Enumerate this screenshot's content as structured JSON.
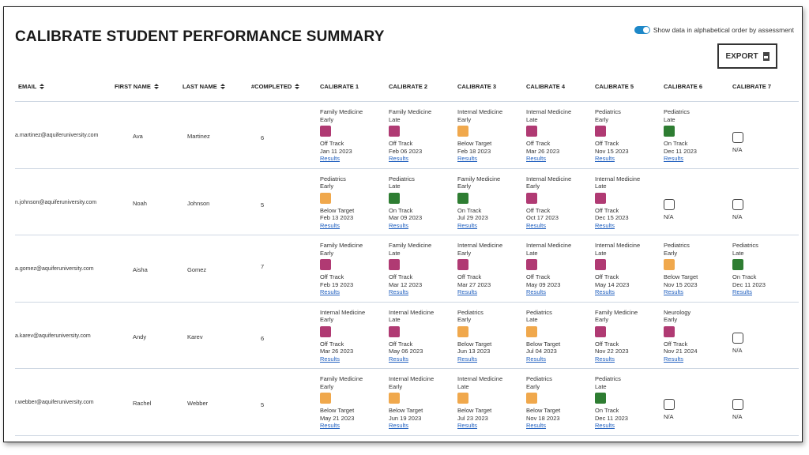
{
  "page": {
    "title": "CALIBRATE STUDENT PERFORMANCE SUMMARY",
    "toggle_label": "Show data in alphabetical order by assessment",
    "export_label": "EXPORT"
  },
  "colors": {
    "off_track": "#b03a73",
    "below_target": "#f0a84c",
    "on_track": "#2e7d32",
    "toggle_on": "#1e88c8",
    "link": "#1f5fbf"
  },
  "headers": {
    "email": "EMAIL",
    "first_name": "FIRST NAME",
    "last_name": "LAST NAME",
    "completed": "#COMPLETED",
    "calibrates": [
      "CALIBRATE 1",
      "CALIBRATE 2",
      "CALIBRATE 3",
      "CALIBRATE 4",
      "CALIBRATE 5",
      "CALIBRATE 6",
      "CALIBRATE 7"
    ]
  },
  "rows": [
    {
      "email": "a.martinez@aquiferuniversity.com",
      "first": "Ava",
      "last": "Martinez",
      "completed": "6",
      "cells": [
        {
          "l1": "Family Medicine",
          "l2": "Early",
          "state": "off",
          "status": "Off Track",
          "date": "Jan 11 2023",
          "link": "Results"
        },
        {
          "l1": "Family Medicine",
          "l2": "Late",
          "state": "off",
          "status": "Off Track",
          "date": "Feb 06 2023",
          "link": "Results"
        },
        {
          "l1": "Internal Medicine",
          "l2": "Early",
          "state": "below",
          "status": "Below Target",
          "date": "Feb 18 2023",
          "link": "Results"
        },
        {
          "l1": "Internal Medicine",
          "l2": "Late",
          "state": "off",
          "status": "Off Track",
          "date": "Mar 26 2023",
          "link": "Results"
        },
        {
          "l1": "Pediatrics",
          "l2": "Early",
          "state": "off",
          "status": "Off Track",
          "date": "Nov 15 2023",
          "link": "Results"
        },
        {
          "l1": "Pediatrics",
          "l2": "Late",
          "state": "on",
          "status": "On Track",
          "date": "Dec 11 2023",
          "link": "Results"
        },
        {
          "state": "na",
          "status": "N/A"
        }
      ]
    },
    {
      "email": "n.johnson@aquiferuniversity.com",
      "first": "Noah",
      "last": "Johnson",
      "completed": "5",
      "cells": [
        {
          "l1": "Pediatrics",
          "l2": "Early",
          "state": "below",
          "status": "Below Target",
          "date": "Feb 13 2023",
          "link": "Results"
        },
        {
          "l1": "Pediatrics",
          "l2": "Late",
          "state": "on",
          "status": "On Track",
          "date": "Mar 09 2023",
          "link": "Results"
        },
        {
          "l1": "Family Medicine",
          "l2": "Early",
          "state": "on",
          "status": "On Track",
          "date": "Jul 29 2023",
          "link": "Results"
        },
        {
          "l1": "Internal Medicine",
          "l2": "Early",
          "state": "off",
          "status": "Off Track",
          "date": "Oct 17 2023",
          "link": "Results"
        },
        {
          "l1": "Internal Medicine",
          "l2": "Late",
          "state": "off",
          "status": "Off Track",
          "date": "Dec 15 2023",
          "link": "Results"
        },
        {
          "state": "na",
          "status": "N/A"
        },
        {
          "state": "na",
          "status": "N/A"
        }
      ]
    },
    {
      "email": "a.gomez@aquiferuniversity.com",
      "first": "Aisha",
      "last": "Gomez",
      "completed": "7",
      "cells": [
        {
          "l1": "Family Medicine",
          "l2": "Early",
          "state": "off",
          "status": "Off Track",
          "date": "Feb 19 2023",
          "link": "Results"
        },
        {
          "l1": "Family Medicine",
          "l2": "Late",
          "state": "off",
          "status": "Off Track",
          "date": "Mar 12 2023",
          "link": "Results"
        },
        {
          "l1": "Internal Medicine",
          "l2": "Early",
          "state": "off",
          "status": "Off Track",
          "date": "Mar 27 2023",
          "link": "Results"
        },
        {
          "l1": "Internal Medicine",
          "l2": "Late",
          "state": "off",
          "status": "Off Track",
          "date": "May 09 2023",
          "link": "Results"
        },
        {
          "l1": "Internal Medicine",
          "l2": "Late",
          "state": "off",
          "status": "Off Track",
          "date": "May 14 2023",
          "link": "Results"
        },
        {
          "l1": "Pediatrics",
          "l2": "Early",
          "state": "below",
          "status": "Below Target",
          "date": "Nov 15 2023",
          "link": "Results"
        },
        {
          "l1": "Pediatrics",
          "l2": "Late",
          "state": "on",
          "status": "On Track",
          "date": "Dec 11 2023",
          "link": "Results"
        }
      ]
    },
    {
      "email": "a.karev@aquiferuniversity.com",
      "first": "Andy",
      "last": "Karev",
      "completed": "6",
      "cells": [
        {
          "l1": "Internal Medicine",
          "l2": "Early",
          "state": "off",
          "status": "Off Track",
          "date": "Mar 26 2023",
          "link": "Results"
        },
        {
          "l1": "Internal Medicine",
          "l2": "Late",
          "state": "off",
          "status": "Off Track",
          "date": "May 06 2023",
          "link": "Results"
        },
        {
          "l1": "Pediatrics",
          "l2": "Early",
          "state": "below",
          "status": "Below Target",
          "date": "Jun 13 2023",
          "link": "Results"
        },
        {
          "l1": "Pediatrics",
          "l2": "Late",
          "state": "below",
          "status": "Below Target",
          "date": "Jul 04 2023",
          "link": "Results"
        },
        {
          "l1": "Family Medicine",
          "l2": "Early",
          "state": "off",
          "status": "Off Track",
          "date": "Nov 22 2023",
          "link": "Results"
        },
        {
          "l1": "Neurology",
          "l2": "Early",
          "state": "off",
          "status": "Off Track",
          "date": "Nov 21 2024",
          "link": "Results"
        },
        {
          "state": "na",
          "status": "N/A"
        }
      ]
    },
    {
      "email": "r.webber@aquiferuniversity.com",
      "first": "Rachel",
      "last": "Webber",
      "completed": "5",
      "cells": [
        {
          "l1": "Family Medicine",
          "l2": "Early",
          "state": "below",
          "status": "Below Target",
          "date": "May 21 2023",
          "link": "Results"
        },
        {
          "l1": "Internal Medicine",
          "l2": "Early",
          "state": "below",
          "status": "Below Target",
          "date": "Jun 19 2023",
          "link": "Results"
        },
        {
          "l1": "Internal Medicine",
          "l2": "Late",
          "state": "below",
          "status": "Below Target",
          "date": "Jul 23 2023",
          "link": "Results"
        },
        {
          "l1": "Pediatrics",
          "l2": "Early",
          "state": "below",
          "status": "Below Target",
          "date": "Nov 18 2023",
          "link": "Results"
        },
        {
          "l1": "Pediatrics",
          "l2": "Late",
          "state": "on",
          "status": "On Track",
          "date": "Dec 11 2023",
          "link": "Results"
        },
        {
          "state": "na",
          "status": "N/A"
        },
        {
          "state": "na",
          "status": "N/A"
        }
      ]
    }
  ]
}
